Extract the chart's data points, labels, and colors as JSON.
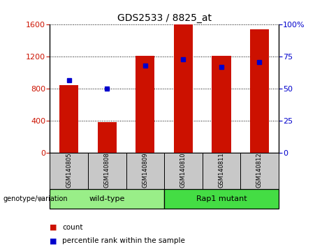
{
  "title": "GDS2533 / 8825_at",
  "categories": [
    "GSM140805",
    "GSM140808",
    "GSM140809",
    "GSM140810",
    "GSM140811",
    "GSM140812"
  ],
  "counts": [
    850,
    390,
    1210,
    1600,
    1210,
    1540
  ],
  "percentile_ranks": [
    57,
    50,
    68,
    73,
    67,
    71
  ],
  "left_ylim": [
    0,
    1600
  ],
  "right_ylim": [
    0,
    100
  ],
  "left_yticks": [
    0,
    400,
    800,
    1200,
    1600
  ],
  "right_yticks": [
    0,
    25,
    50,
    75,
    100
  ],
  "bar_color": "#CC1100",
  "dot_color": "#0000CC",
  "background_label": "#C8C8C8",
  "background_wildtype": "#99EE88",
  "background_mutant": "#44DD44",
  "groups": [
    {
      "label": "wild-type",
      "indices": [
        0,
        1,
        2
      ]
    },
    {
      "label": "Rap1 mutant",
      "indices": [
        3,
        4,
        5
      ]
    }
  ],
  "group_annotation_label": "genotype/variation",
  "legend_count_label": "count",
  "legend_percentile_label": "percentile rank within the sample",
  "bar_width": 0.5
}
